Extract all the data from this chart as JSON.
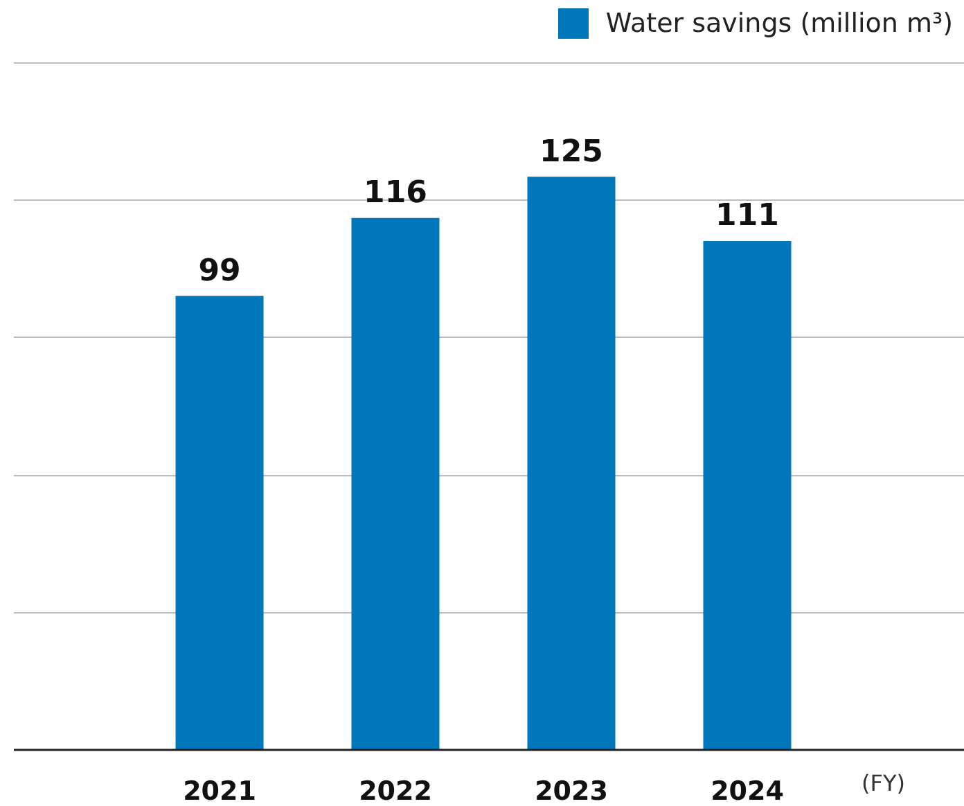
{
  "chart_data": {
    "type": "bar",
    "categories": [
      "2021",
      "2022",
      "2023",
      "2024"
    ],
    "series": [
      {
        "name": "Water savings (million m³)",
        "color": "#0077bb",
        "values": [
          99,
          116,
          125,
          111
        ]
      }
    ],
    "ylim": [
      0,
      150
    ],
    "yticks": [
      {
        "value": 0,
        "label": null
      },
      {
        "value": 30,
        "label": null
      },
      {
        "value": 60,
        "label": null
      },
      {
        "value": 90,
        "label": null
      },
      {
        "value": 120,
        "label": null
      },
      {
        "value": 150,
        "label": null
      }
    ],
    "tick_labels": "x",
    "grid": "y",
    "legend": "top right",
    "data_labels": true,
    "annotations": [
      "(FY)"
    ]
  }
}
